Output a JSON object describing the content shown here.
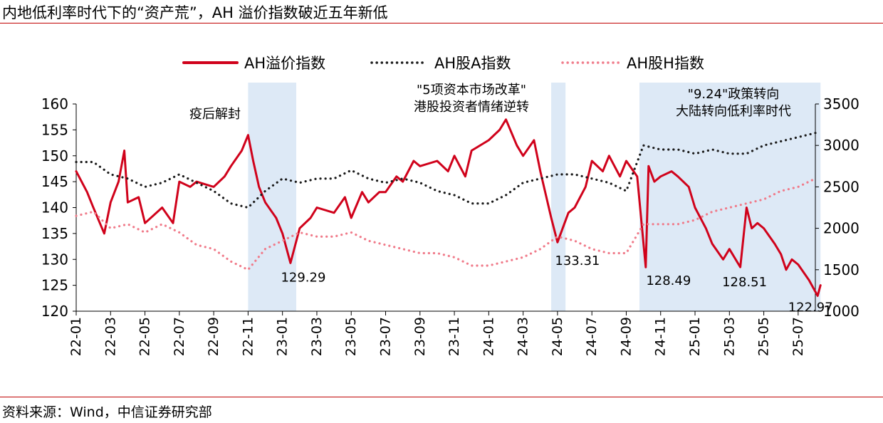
{
  "header": {
    "title": "内地低利率时代下的“资产荒”，AH 溢价指数破近五年新低"
  },
  "footer": {
    "source": "资料来源：Wind，中信证券研究部"
  },
  "colors": {
    "premium": "#d0021b",
    "a_index": "#1a1a1a",
    "h_index": "#f07b8a",
    "shade": "#dde9f6",
    "rule": "#c00000"
  },
  "chart_data": {
    "type": "line",
    "legend_position": "top",
    "x_ticks": [
      "22-01",
      "22-03",
      "22-05",
      "22-07",
      "22-09",
      "22-11",
      "23-01",
      "23-03",
      "23-05",
      "23-07",
      "23-09",
      "23-11",
      "24-01",
      "24-03",
      "24-05",
      "24-07",
      "24-09",
      "24-11",
      "25-01",
      "25-03",
      "25-05",
      "25-07"
    ],
    "x_range": [
      "2022-01",
      "2025-08"
    ],
    "y_left": {
      "range": [
        120,
        160
      ],
      "ticks": [
        120,
        125,
        130,
        135,
        140,
        145,
        150,
        155,
        160
      ]
    },
    "y_right": {
      "range": [
        1000,
        3500
      ],
      "ticks": [
        1000,
        1500,
        2000,
        2500,
        3000,
        3500
      ]
    },
    "series": [
      {
        "name": "AH溢价指数",
        "axis": "left",
        "style": "solid",
        "color": "#d0021b",
        "points": [
          [
            "2022-01",
            147
          ],
          [
            "2022-01-20",
            143
          ],
          [
            "2022-02",
            140
          ],
          [
            "2022-02-20",
            135
          ],
          [
            "2022-03",
            141
          ],
          [
            "2022-03-15",
            145
          ],
          [
            "2022-03-25",
            151
          ],
          [
            "2022-04",
            141
          ],
          [
            "2022-04-20",
            142
          ],
          [
            "2022-05",
            137
          ],
          [
            "2022-06",
            140
          ],
          [
            "2022-06-20",
            137
          ],
          [
            "2022-07",
            145
          ],
          [
            "2022-07-20",
            144
          ],
          [
            "2022-08",
            145
          ],
          [
            "2022-09",
            144
          ],
          [
            "2022-09-20",
            146
          ],
          [
            "2022-10",
            148
          ],
          [
            "2022-10-20",
            151
          ],
          [
            "2022-11",
            154
          ],
          [
            "2022-11-10",
            149
          ],
          [
            "2022-11-20",
            144
          ],
          [
            "2022-12",
            141
          ],
          [
            "2022-12-20",
            138
          ],
          [
            "2023-01",
            135
          ],
          [
            "2023-01-15",
            129.29
          ],
          [
            "2023-02",
            136
          ],
          [
            "2023-02-20",
            138
          ],
          [
            "2023-03",
            140
          ],
          [
            "2023-04",
            139
          ],
          [
            "2023-04-20",
            142
          ],
          [
            "2023-05",
            138
          ],
          [
            "2023-05-20",
            143
          ],
          [
            "2023-06",
            141
          ],
          [
            "2023-06-20",
            143
          ],
          [
            "2023-07",
            143
          ],
          [
            "2023-07-20",
            146
          ],
          [
            "2023-08",
            145
          ],
          [
            "2023-08-20",
            149
          ],
          [
            "2023-09",
            148
          ],
          [
            "2023-10",
            149
          ],
          [
            "2023-10-20",
            147
          ],
          [
            "2023-11",
            150
          ],
          [
            "2023-11-20",
            146
          ],
          [
            "2023-12",
            151
          ],
          [
            "2024-01",
            153
          ],
          [
            "2024-01-20",
            155
          ],
          [
            "2024-02",
            157
          ],
          [
            "2024-02-20",
            152
          ],
          [
            "2024-03",
            150
          ],
          [
            "2024-03-20",
            153
          ],
          [
            "2024-04",
            147
          ],
          [
            "2024-04-20",
            138
          ],
          [
            "2024-05",
            133.31
          ],
          [
            "2024-05-20",
            139
          ],
          [
            "2024-06",
            140
          ],
          [
            "2024-06-20",
            144
          ],
          [
            "2024-07",
            149
          ],
          [
            "2024-07-20",
            147
          ],
          [
            "2024-08",
            150
          ],
          [
            "2024-08-20",
            146
          ],
          [
            "2024-09",
            149
          ],
          [
            "2024-09-20",
            146
          ],
          [
            "2024-10-05",
            128.49
          ],
          [
            "2024-10-10",
            148
          ],
          [
            "2024-10-20",
            145
          ],
          [
            "2024-11",
            146
          ],
          [
            "2024-11-20",
            147
          ],
          [
            "2024-12",
            146
          ],
          [
            "2024-12-20",
            144
          ],
          [
            "2025-01",
            140
          ],
          [
            "2025-01-20",
            136
          ],
          [
            "2025-02",
            133
          ],
          [
            "2025-02-20",
            130
          ],
          [
            "2025-03",
            132
          ],
          [
            "2025-03-20",
            128.51
          ],
          [
            "2025-04",
            140
          ],
          [
            "2025-04-10",
            136
          ],
          [
            "2025-04-20",
            137
          ],
          [
            "2025-05",
            136
          ],
          [
            "2025-05-20",
            133
          ],
          [
            "2025-06",
            131
          ],
          [
            "2025-06-10",
            128
          ],
          [
            "2025-06-20",
            130
          ],
          [
            "2025-07",
            129
          ],
          [
            "2025-07-20",
            126
          ],
          [
            "2025-08-05",
            122.97
          ],
          [
            "2025-08-10",
            125
          ]
        ]
      },
      {
        "name": "AH股A指数",
        "axis": "right",
        "style": "dotted",
        "color": "#1a1a1a",
        "points": [
          [
            "2022-01",
            2800
          ],
          [
            "2022-02",
            2800
          ],
          [
            "2022-03",
            2650
          ],
          [
            "2022-04",
            2600
          ],
          [
            "2022-05",
            2500
          ],
          [
            "2022-06",
            2550
          ],
          [
            "2022-07",
            2650
          ],
          [
            "2022-08",
            2550
          ],
          [
            "2022-09",
            2450
          ],
          [
            "2022-10",
            2300
          ],
          [
            "2022-11",
            2250
          ],
          [
            "2022-12",
            2450
          ],
          [
            "2023-01",
            2600
          ],
          [
            "2023-02",
            2550
          ],
          [
            "2023-03",
            2600
          ],
          [
            "2023-04",
            2600
          ],
          [
            "2023-05",
            2700
          ],
          [
            "2023-06",
            2600
          ],
          [
            "2023-07",
            2550
          ],
          [
            "2023-08",
            2600
          ],
          [
            "2023-09",
            2550
          ],
          [
            "2023-10",
            2450
          ],
          [
            "2023-11",
            2400
          ],
          [
            "2023-12",
            2300
          ],
          [
            "2024-01",
            2300
          ],
          [
            "2024-02",
            2400
          ],
          [
            "2024-03",
            2550
          ],
          [
            "2024-04",
            2600
          ],
          [
            "2024-05",
            2650
          ],
          [
            "2024-06",
            2650
          ],
          [
            "2024-07",
            2600
          ],
          [
            "2024-08",
            2550
          ],
          [
            "2024-09",
            2450
          ],
          [
            "2024-10",
            3000
          ],
          [
            "2024-11",
            2950
          ],
          [
            "2024-12",
            2950
          ],
          [
            "2025-01",
            2900
          ],
          [
            "2025-02",
            2950
          ],
          [
            "2025-03",
            2900
          ],
          [
            "2025-04",
            2900
          ],
          [
            "2025-05",
            3000
          ],
          [
            "2025-06",
            3050
          ],
          [
            "2025-07",
            3100
          ],
          [
            "2025-08",
            3150
          ]
        ]
      },
      {
        "name": "AH股H指数",
        "axis": "right",
        "style": "dotted",
        "color": "#f07b8a",
        "points": [
          [
            "2022-01",
            2150
          ],
          [
            "2022-02",
            2200
          ],
          [
            "2022-03",
            2000
          ],
          [
            "2022-04",
            2050
          ],
          [
            "2022-05",
            1950
          ],
          [
            "2022-06",
            2050
          ],
          [
            "2022-07",
            1950
          ],
          [
            "2022-08",
            1800
          ],
          [
            "2022-09",
            1750
          ],
          [
            "2022-10",
            1600
          ],
          [
            "2022-11",
            1500
          ],
          [
            "2022-12",
            1750
          ],
          [
            "2023-01",
            1850
          ],
          [
            "2023-02",
            1950
          ],
          [
            "2023-03",
            1900
          ],
          [
            "2023-04",
            1900
          ],
          [
            "2023-05",
            1950
          ],
          [
            "2023-06",
            1850
          ],
          [
            "2023-07",
            1800
          ],
          [
            "2023-08",
            1750
          ],
          [
            "2023-09",
            1700
          ],
          [
            "2023-10",
            1700
          ],
          [
            "2023-11",
            1650
          ],
          [
            "2023-12",
            1550
          ],
          [
            "2024-01",
            1550
          ],
          [
            "2024-02",
            1600
          ],
          [
            "2024-03",
            1650
          ],
          [
            "2024-04",
            1750
          ],
          [
            "2024-05",
            1900
          ],
          [
            "2024-06",
            1850
          ],
          [
            "2024-07",
            1750
          ],
          [
            "2024-08",
            1700
          ],
          [
            "2024-09",
            1700
          ],
          [
            "2024-10",
            2050
          ],
          [
            "2024-11",
            2050
          ],
          [
            "2024-12",
            2050
          ],
          [
            "2025-01",
            2100
          ],
          [
            "2025-02",
            2200
          ],
          [
            "2025-03",
            2250
          ],
          [
            "2025-04",
            2300
          ],
          [
            "2025-05",
            2350
          ],
          [
            "2025-06",
            2450
          ],
          [
            "2025-07",
            2500
          ],
          [
            "2025-08",
            2600
          ]
        ]
      }
    ],
    "shaded_periods": [
      {
        "start": "2022-11",
        "end": "2023-01-25",
        "label_lines": [
          "疫后解封"
        ]
      },
      {
        "start": "2024-04-20",
        "end": "2024-05-15",
        "label_lines": [
          "\"5项资本市场改革\"",
          "港股投资者情绪逆转"
        ]
      },
      {
        "start": "2024-09-24",
        "end": "2025-08-10",
        "label_lines": [
          "\"9.24\"政策转向",
          "大陆转向低利率时代"
        ]
      }
    ],
    "annotations": [
      {
        "text": "129.29",
        "x": "2023-01-15",
        "y": 129.29
      },
      {
        "text": "133.31",
        "x": "2024-05",
        "y": 133.31
      },
      {
        "text": "128.49",
        "x": "2024-10-05",
        "y": 128.49
      },
      {
        "text": "128.51",
        "x": "2025-03-20",
        "y": 128.51
      },
      {
        "text": "122.97",
        "x": "2025-08-05",
        "y": 122.97
      }
    ]
  }
}
